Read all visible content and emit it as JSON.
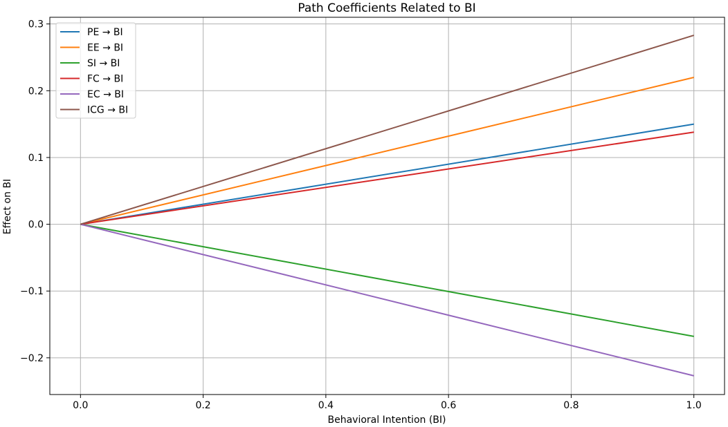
{
  "chart_data": {
    "type": "line",
    "title": "Path Coefficients Related to BI",
    "xlabel": "Behavioral Intention (BI)",
    "ylabel": "Effect on BI",
    "xlim": [
      -0.05,
      1.05
    ],
    "ylim": [
      -0.255,
      0.31
    ],
    "xticks": [
      0.0,
      0.2,
      0.4,
      0.6,
      0.8,
      1.0
    ],
    "xtick_labels": [
      "0.0",
      "0.2",
      "0.4",
      "0.6",
      "0.8",
      "1.0"
    ],
    "yticks": [
      -0.2,
      -0.1,
      0.0,
      0.1,
      0.2,
      0.3
    ],
    "ytick_labels": [
      "−0.2",
      "−0.1",
      "0.0",
      "0.1",
      "0.2",
      "0.3"
    ],
    "grid": true,
    "legend_position": "top-left",
    "series": [
      {
        "name": "PE → BI",
        "color": "#1f77b4",
        "x": [
          0.0,
          1.0
        ],
        "y": [
          0.0,
          0.15
        ]
      },
      {
        "name": "EE → BI",
        "color": "#ff7f0e",
        "x": [
          0.0,
          1.0
        ],
        "y": [
          0.0,
          0.22
        ]
      },
      {
        "name": "SI → BI",
        "color": "#2ca02c",
        "x": [
          0.0,
          1.0
        ],
        "y": [
          0.0,
          -0.168
        ]
      },
      {
        "name": "FC → BI",
        "color": "#d62728",
        "x": [
          0.0,
          1.0
        ],
        "y": [
          0.0,
          0.138
        ]
      },
      {
        "name": "EC → BI",
        "color": "#9467bd",
        "x": [
          0.0,
          1.0
        ],
        "y": [
          0.0,
          -0.227
        ]
      },
      {
        "name": "ICG → BI",
        "color": "#8c564b",
        "x": [
          0.0,
          1.0
        ],
        "y": [
          0.0,
          0.283
        ]
      }
    ]
  }
}
